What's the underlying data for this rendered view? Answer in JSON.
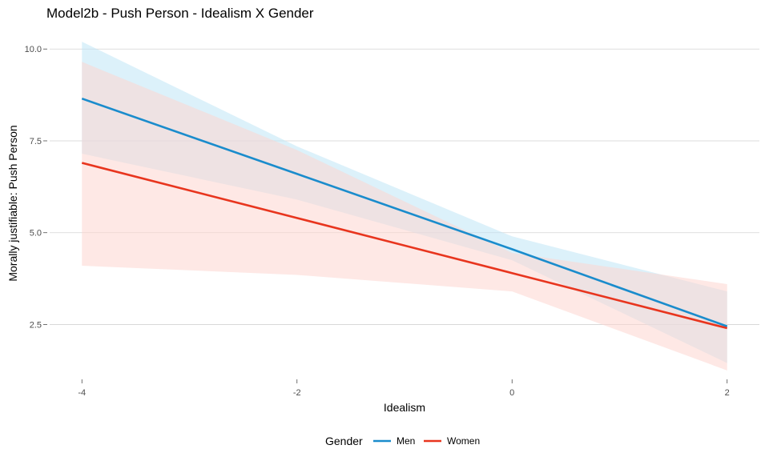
{
  "chart_data": {
    "type": "line",
    "title": "Model2b - Push Person - Idealism X Gender",
    "xlabel": "Idealism",
    "ylabel": "Morally justifiable: Push Person",
    "x_ticks": [
      "-4",
      "-2",
      "0",
      "2"
    ],
    "y_ticks": [
      "2.5",
      "5.0",
      "7.5",
      "10.0"
    ],
    "xlim": [
      -4.3,
      2.3
    ],
    "ylim": [
      1.05,
      10.55
    ],
    "grid": "horizontal-major",
    "legend": {
      "title": "Gender",
      "position": "bottom"
    },
    "series": [
      {
        "name": "Men",
        "color": "#1a8ccc",
        "band_color": "#bfe6f5",
        "x": [
          -4,
          -2,
          0,
          2
        ],
        "y": [
          8.65,
          6.6,
          4.55,
          2.45
        ],
        "lower": [
          7.15,
          5.9,
          4.25,
          1.45
        ],
        "upper": [
          10.2,
          7.35,
          4.9,
          3.4
        ]
      },
      {
        "name": "Women",
        "color": "#e8351e",
        "band_color": "#fdd5cf",
        "x": [
          -4,
          -2,
          0,
          2
        ],
        "y": [
          6.9,
          5.4,
          3.9,
          2.4
        ],
        "lower": [
          4.1,
          3.85,
          3.4,
          1.25
        ],
        "upper": [
          9.65,
          7.25,
          4.45,
          3.6
        ]
      }
    ]
  }
}
